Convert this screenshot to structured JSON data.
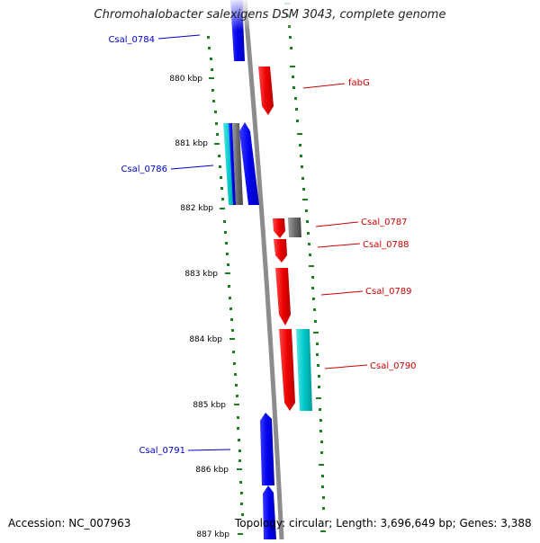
{
  "title": "Chromohalobacter salexigens DSM 3043, complete genome",
  "accession": "Accession: NC_007963",
  "topology": "Topology: circular; Length: 3,696,649 bp; Genes: 3,388",
  "ruler_labels": [
    "880 kbp",
    "881 kbp",
    "882 kbp",
    "883 kbp",
    "884 kbp",
    "885 kbp",
    "886 kbp",
    "887 kbp"
  ],
  "colors": {
    "reverse_gene": "#0000ee",
    "forward_gene": "#ee0000",
    "teal_gene": "#00c8c8",
    "gray_gene": "#6a6a6a",
    "backbone": "#8c8c8c",
    "tick": "#1f7f1f",
    "reverse_label": "#0000cc",
    "forward_label": "#cc0000"
  },
  "gene_labels": [
    {
      "id": "Csal_0784",
      "text": "Csal_0784",
      "strand": "reverse"
    },
    {
      "id": "fabG",
      "text": "fabG",
      "strand": "forward"
    },
    {
      "id": "Csal_0786",
      "text": "Csal_0786",
      "strand": "reverse"
    },
    {
      "id": "Csal_0787",
      "text": "Csal_0787",
      "strand": "forward"
    },
    {
      "id": "Csal_0788",
      "text": "Csal_0788",
      "strand": "forward"
    },
    {
      "id": "Csal_0789",
      "text": "Csal_0789",
      "strand": "forward"
    },
    {
      "id": "Csal_0790",
      "text": "Csal_0790",
      "strand": "forward"
    },
    {
      "id": "Csal_0791",
      "text": "Csal_0791",
      "strand": "reverse"
    }
  ]
}
